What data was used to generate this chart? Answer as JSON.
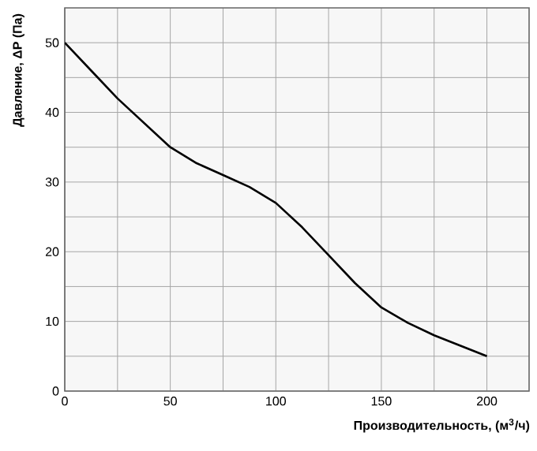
{
  "chart_data": {
    "type": "line",
    "xlabel": "Производительность, (м$^{3}$/ч)",
    "ylabel": "Давление, ΔP (Па)",
    "x": [
      0,
      12.5,
      25,
      37.5,
      50,
      62.5,
      75,
      87.5,
      100,
      112.5,
      125,
      137.5,
      150,
      162.5,
      175,
      187.5,
      200
    ],
    "series": [
      {
        "color": "#000000",
        "values": [
          50,
          46,
          42,
          38.5,
          35,
          32.7,
          31,
          29.3,
          27,
          23.5,
          19.5,
          15.5,
          12,
          9.8,
          8,
          6.5,
          5
        ]
      }
    ],
    "xlim": [
      0,
      220
    ],
    "ylim": [
      0,
      55
    ],
    "xticks": [
      0,
      {
        "value": 25,
        "label": null
      },
      50,
      {
        "value": 75,
        "label": null
      },
      100,
      {
        "value": 125,
        "label": null
      },
      150,
      {
        "value": 175,
        "label": null
      },
      200
    ],
    "yticks": [
      0,
      {
        "value": 5,
        "label": null
      },
      10,
      {
        "value": 15,
        "label": null
      },
      20,
      {
        "value": 25,
        "label": null
      },
      30,
      {
        "value": 35,
        "label": null
      },
      40,
      {
        "value": 45,
        "label": null
      },
      50
    ],
    "grid": true,
    "marker": "none",
    "line_style": "solid"
  }
}
